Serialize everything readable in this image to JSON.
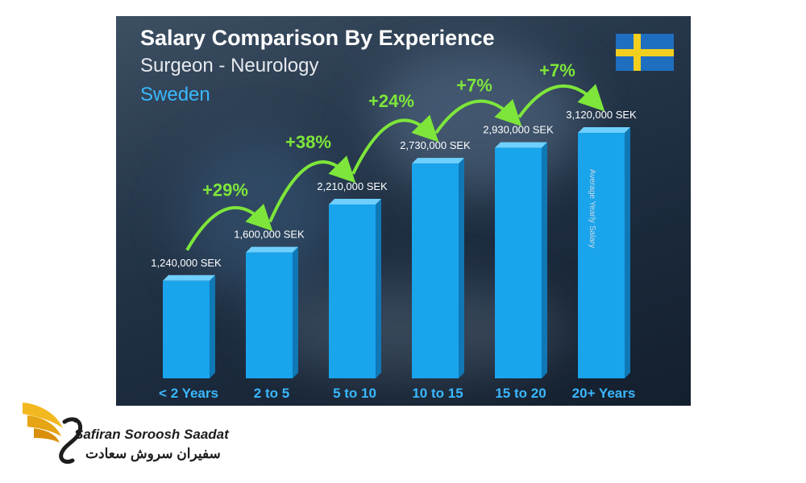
{
  "chart_data": {
    "type": "bar",
    "title": "Salary Comparison By Experience",
    "subtitle": "Surgeon - Neurology",
    "country": "Sweden",
    "ylabel": "Average Yearly Salary",
    "categories": [
      "< 2 Years",
      "2 to 5",
      "5 to 10",
      "10 to 15",
      "15 to 20",
      "20+ Years"
    ],
    "values": [
      1240000,
      1600000,
      2210000,
      2730000,
      2930000,
      3120000
    ],
    "value_labels": [
      "1,240,000 SEK",
      "1,600,000 SEK",
      "2,210,000 SEK",
      "2,730,000 SEK",
      "2,930,000 SEK",
      "3,120,000 SEK"
    ],
    "increases": [
      "+29%",
      "+38%",
      "+24%",
      "+7%",
      "+7%"
    ],
    "colors": {
      "bar": "#19a4ec",
      "bar_top": "#6fd0ff",
      "bar_side": "#0f78b5",
      "increase": "#7ee63a",
      "category": "#3ab8ff"
    }
  },
  "brand": {
    "name": "Safiran Soroosh Saadat",
    "name_fa": "سفیران سروش سعادت"
  }
}
